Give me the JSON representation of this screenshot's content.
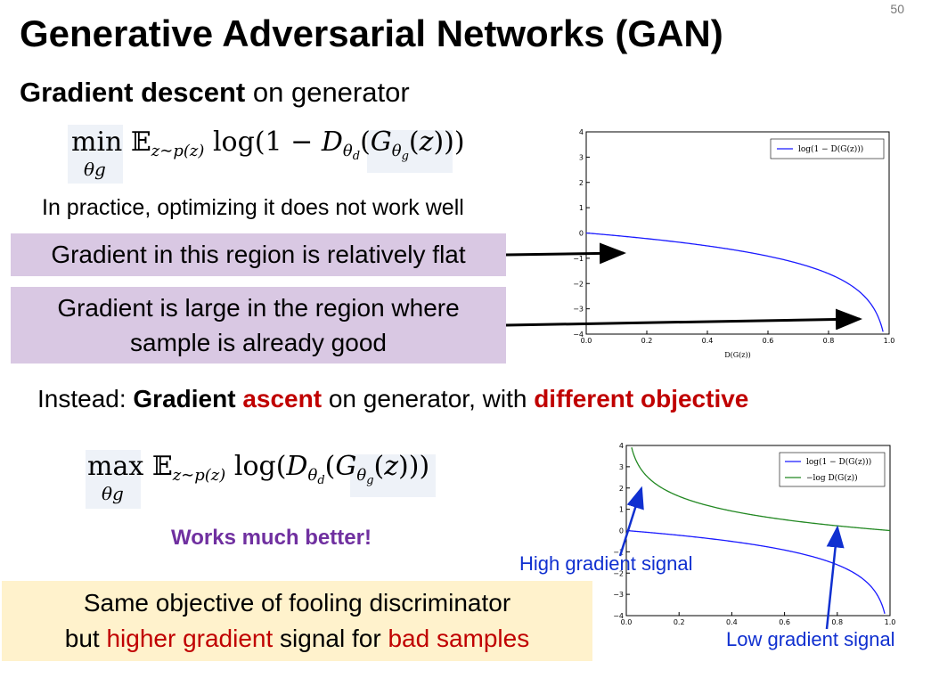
{
  "page_number": "50",
  "title": "Generative Adversarial Networks (GAN)",
  "subtitle": {
    "bold": "Gradient descent",
    "rest": " on generator"
  },
  "formula1": {
    "op": "min",
    "under": "θg"
  },
  "practice_text": "In practice, optimizing it does not work well",
  "box_flat": "Gradient in this region is relatively flat",
  "box_large": {
    "line1": "Gradient is large in the region where",
    "line2": "sample is already good"
  },
  "instead": {
    "p1": "Instead: ",
    "p2": "Gradient",
    "p3": " ascent",
    "p4": " on generator, with ",
    "p5": "different objective"
  },
  "formula2": {
    "op": "max",
    "under": "θg"
  },
  "works_text": "Works much better!",
  "box_same": {
    "line1": "Same objective of fooling discriminator",
    "line2_a": "but ",
    "line2_b": "higher gradient",
    "line2_c": " signal for ",
    "line2_d": "bad samples"
  },
  "high_label": "High gradient signal",
  "low_label": "Low gradient signal",
  "colors": {
    "blue": "#1a1aff",
    "green": "#228822",
    "red": "#c00000",
    "purple": "#7030a0"
  },
  "chart_data": [
    {
      "type": "line",
      "xlabel": "D(G(z))",
      "xlim": [
        0,
        1
      ],
      "ylim": [
        -4,
        4
      ],
      "xticks": [
        "0.0",
        "0.2",
        "0.4",
        "0.6",
        "0.8",
        "1.0"
      ],
      "yticks": [
        "4",
        "3",
        "2",
        "1",
        "0",
        "−1",
        "−2",
        "−3",
        "−4"
      ],
      "legend_placement": "top-right",
      "series": [
        {
          "name": "log(1 − D(G(z)))",
          "function": "log(1-x)"
        }
      ]
    },
    {
      "type": "line",
      "xlim": [
        0,
        1
      ],
      "ylim": [
        -4,
        4
      ],
      "xticks": [
        "0.0",
        "0.2",
        "0.4",
        "0.6",
        "0.8",
        "1.0"
      ],
      "yticks": [
        "4",
        "3",
        "2",
        "1",
        "0",
        "−1",
        "−2",
        "−3",
        "−4"
      ],
      "legend_placement": "top-right",
      "series": [
        {
          "name": "log(1 − D(G(z)))",
          "function": "log(1-x)"
        },
        {
          "name": "−log D(G(z))",
          "function": "-log(x)"
        }
      ]
    }
  ]
}
